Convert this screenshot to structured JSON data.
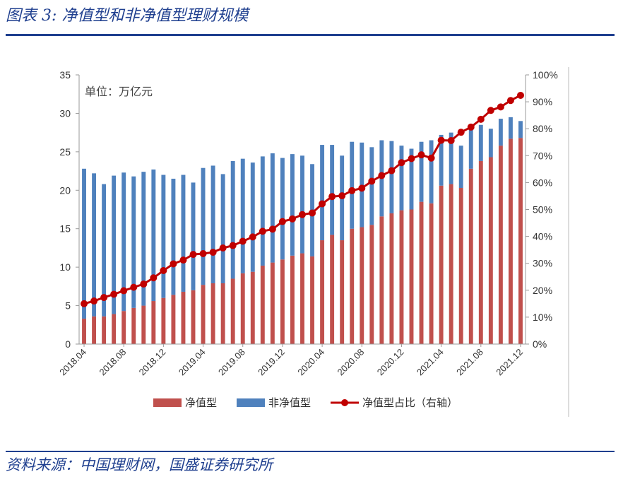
{
  "header": {
    "title": "图表 3:  净值型和非净值型理财规模"
  },
  "footer": {
    "source": "资料来源：中国理财网，国盛证券研究所"
  },
  "colors": {
    "accent": "#1f3f8f",
    "net_value": "#c0504d",
    "non_net_value": "#4f81bd",
    "ratio_line": "#c00000"
  },
  "chart_data": {
    "type": "bar",
    "stacked": true,
    "unit_label": "单位：万亿元",
    "categories": [
      "2018.04",
      "2018.05",
      "2018.06",
      "2018.07",
      "2018.08",
      "2018.09",
      "2018.10",
      "2018.11",
      "2018.12",
      "2019.01",
      "2019.02",
      "2019.03",
      "2019.04",
      "2019.05",
      "2019.06",
      "2019.07",
      "2019.08",
      "2019.09",
      "2019.10",
      "2019.11",
      "2019.12",
      "2020.01",
      "2020.02",
      "2020.03",
      "2020.04",
      "2020.05",
      "2020.06",
      "2020.07",
      "2020.08",
      "2020.09",
      "2020.10",
      "2020.11",
      "2020.12",
      "2021.01",
      "2021.02",
      "2021.03",
      "2021.04",
      "2021.05",
      "2021.06",
      "2021.07",
      "2021.08",
      "2021.09",
      "2021.10",
      "2021.11",
      "2021.12"
    ],
    "x_tick_labels": [
      "2018.04",
      "2018.08",
      "2018.12",
      "2019.04",
      "2019.08",
      "2019.12",
      "2020.04",
      "2020.08",
      "2020.12",
      "2021.04",
      "2021.08",
      "2021.12"
    ],
    "series": [
      {
        "name": "净值型",
        "axis": "left",
        "values": [
          3.3,
          3.6,
          3.6,
          3.9,
          4.3,
          4.7,
          5.0,
          5.6,
          6.0,
          6.4,
          6.8,
          7.0,
          7.7,
          7.9,
          7.9,
          8.5,
          9.2,
          9.4,
          10.2,
          10.6,
          11.0,
          11.5,
          11.8,
          11.4,
          13.5,
          14.2,
          13.5,
          15.0,
          15.2,
          15.5,
          16.6,
          17.0,
          17.4,
          17.5,
          18.5,
          18.3,
          20.6,
          20.8,
          20.3,
          22.8,
          23.8,
          24.3,
          25.8,
          26.7,
          26.8
        ]
      },
      {
        "name": "非净值型",
        "axis": "left",
        "values": [
          19.5,
          18.6,
          17.2,
          18.0,
          18.0,
          17.1,
          17.4,
          17.1,
          16.0,
          15.1,
          15.2,
          14.0,
          15.2,
          15.3,
          14.2,
          15.3,
          14.9,
          14.2,
          14.2,
          14.2,
          13.2,
          13.2,
          12.7,
          12.0,
          12.4,
          11.7,
          11.0,
          11.3,
          11.0,
          10.1,
          9.9,
          9.4,
          8.4,
          7.9,
          7.8,
          8.2,
          6.6,
          6.7,
          5.5,
          5.5,
          4.7,
          3.7,
          3.5,
          2.8,
          2.2
        ]
      },
      {
        "name": "净值型占比（右轴）",
        "axis": "right",
        "type": "line",
        "values": [
          15.0,
          16.0,
          17.3,
          18.5,
          19.8,
          21.1,
          22.3,
          24.6,
          27.3,
          29.8,
          31.2,
          33.3,
          33.6,
          34.1,
          35.7,
          36.6,
          38.2,
          39.8,
          41.9,
          42.7,
          45.5,
          46.5,
          48.1,
          48.7,
          52.1,
          54.8,
          55.1,
          57.0,
          57.9,
          60.5,
          62.6,
          64.4,
          67.4,
          68.9,
          70.3,
          69.1,
          75.7,
          75.6,
          78.7,
          80.6,
          83.5,
          86.8,
          88.1,
          90.5,
          92.4
        ]
      }
    ],
    "ylim_left": [
      0,
      35
    ],
    "yticks_left": [
      "0",
      "5",
      "10",
      "15",
      "20",
      "25",
      "30",
      "35"
    ],
    "ylim_right": [
      0,
      100
    ],
    "yticks_right": [
      "0%",
      "10%",
      "20%",
      "30%",
      "40%",
      "50%",
      "60%",
      "70%",
      "80%",
      "90%",
      "100%"
    ],
    "legend_position": "bottom",
    "grid": false
  }
}
